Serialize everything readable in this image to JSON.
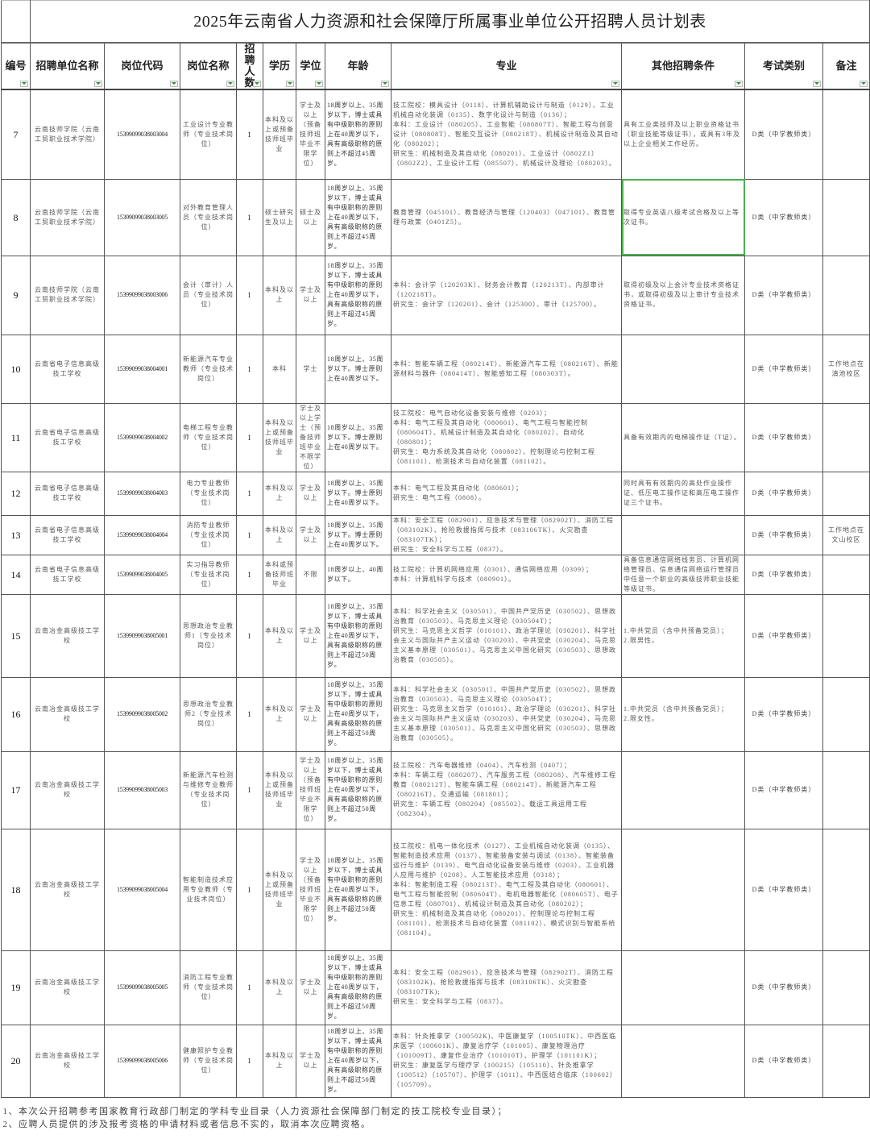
{
  "title": "2025年云南省人力资源和社会保障厅所属事业单位公开招聘人员计划表",
  "headers": [
    "编号",
    "招聘单位名称",
    "岗位代码",
    "岗位名称",
    "招聘人数",
    "学历",
    "学位",
    "年龄",
    "专业",
    "其他招聘条件",
    "考试类别",
    "备注"
  ],
  "rows": [
    {
      "no": "7",
      "unit": "云南技师学院（云南工贸职业技术学院）",
      "code": "15399099038003004",
      "post": "工业设计专业教师（专业技术岗位）",
      "count": "1",
      "edu": "本科及以上或预备技师班毕业",
      "degree": "学士及以上（预备技师班毕业不限学位）",
      "age": "18周岁以上、35周岁以下，博士或具有中级职称的原则上在40周岁以下，具有高级职称的原则上不超过45周岁。",
      "major": "技工院校：模具设计（0118）、计算机辅助设计与制造（0129）、工业机械自动化装调（0135）、数字化设计与制造（0136）；\n本科：工业设计（080205）、工业智能（080807T）、智能工程与创意设计（080808T）、智能交互设计（080218T）、机械设计制造及其自动化（080202）；\n研究生：机械制造及其自动化（080201）、工业设计（0802Z1）（0802Z2）、工业设计工程（085507）、机械设计及理论（080203）。",
      "other": "具有工业类技师及以上职业资格证书（职业技能等级证书），或具有3年及以上企业相关工作经历。",
      "exam": "D类（中学教师类）",
      "note": ""
    },
    {
      "no": "8",
      "unit": "云南技师学院（云南工贸职业技术学院）",
      "code": "15399099038003005",
      "post": "对外教育管理人员（专业技术岗位）",
      "count": "1",
      "edu": "硕士研究生及以上",
      "degree": "硕士及以上",
      "age": "18周岁以上、35周岁以下，博士或具有中级职称的原则上在40周岁以下，具有高级职称的原则上不超过45周岁。",
      "major": "教育管理（045101）、教育经济与管理（120403）（047101）、教育管理与政策（0401Z5）。",
      "other": "取得专业英语八级考试合格及以上等次证书。",
      "exam": "D类（中学教师类）",
      "note": ""
    },
    {
      "no": "9",
      "unit": "云南技师学院（云南工贸职业技术学院）",
      "code": "15399099038003006",
      "post": "会计（审计）人员（专业技术岗位）",
      "count": "1",
      "edu": "本科及以上",
      "degree": "学士及以上",
      "age": "18周岁以上、35周岁以下，博士或具有中级职称的原则上在40周岁以下，具有高级职称的原则上不超过45周岁。",
      "major": "本科：会计学（120203K）、财务会计教育（120213T）、内部审计（120218T）。\n研究生：会计学（120201）、会计（125300）、审计（125700）。",
      "other": "取得初级及以上会计专业技术资格证书，或取得初级及以上审计专业技术资格证书。",
      "exam": "D类（中学教师类）",
      "note": ""
    },
    {
      "no": "10",
      "unit": "云南省电子信息高级技工学校",
      "code": "15399099038004001",
      "post": "新能源汽车专业教师（专业技术岗位）",
      "count": "1",
      "edu": "本科",
      "degree": "学士",
      "age": "18周岁以上、35周岁以下。博士原则上在40周岁以下。",
      "major": "本科：智能车辆工程（080214T）、新能源汽车工程（080216T）、新能源材料与器件（080414T）、智能感知工程（080303T）。",
      "other": "",
      "exam": "D类（中学教师类）",
      "note": "工作地点在滇池校区"
    },
    {
      "no": "11",
      "unit": "云南省电子信息高级技工学校",
      "code": "15399099038004002",
      "post": "电梯工程专业教师（专业技术岗位）",
      "count": "1",
      "edu": "本科及以上或预备技师班毕业",
      "degree": "学士及以上学士（预备技师班毕业不限学位）",
      "age": "18周岁以上、35周岁以下。博士原则上在40周岁以下。",
      "major": "技工院校：电气自动化设备安装与维修（0203）；\n本科：电气工程及其自动化（080601）、电气工程与智能控制（080604T）、机械设计制造及其自动化（080202）、自动化（080801）；\n研究生：电力系统及其自动化（080802）、控制理论与控制工程（081101）、检测技术与自动化装置（081102）。",
      "other": "具备有效期内的电梯操作证（T证）。",
      "exam": "D类（中学教师类）",
      "note": ""
    },
    {
      "no": "12",
      "unit": "云南省电子信息高级技工学校",
      "code": "15399099038004003",
      "post": "电力专业教师（专业技术岗位）",
      "count": "1",
      "edu": "本科及以上",
      "degree": "学士及以上",
      "age": "18周岁以上、35周岁以下。博士原则上在40周岁以下。",
      "major": "本科：电气工程及其自动化（080601）；\n研究生：电气工程（0808）。",
      "other": "同时具有有效期内的高处作业操作证、低压电工操作证和高压电工操作证三个证书。",
      "exam": "D类（中学教师类）",
      "note": ""
    },
    {
      "no": "13",
      "unit": "云南省电子信息高级技工学校",
      "code": "15399099038004004",
      "post": "消防专业教师（专业技术岗位）",
      "count": "1",
      "edu": "本科及以上",
      "degree": "学士及以上",
      "age": "18周岁以上、35周岁以下。博士原则上在40周岁以下。",
      "major": "本科：安全工程（082901）、应急技术与管理（082902T）、消防工程（083102K）、抢险救援指挥与技术（083106TK）、火灾勘查（083107TK）；\n研究生：安全科学与工程（0837）。",
      "other": "",
      "exam": "D类（中学教师类）",
      "note": "工作地点在文山校区"
    },
    {
      "no": "14",
      "unit": "云南省电子信息高级技工学校",
      "code": "15399099038004005",
      "post": "实习指导教师（专业技术岗位）",
      "count": "1",
      "edu": "本科或预备技师班毕业",
      "degree": "不限",
      "age": "18周岁以上、40周岁以下。",
      "major": "技工院校：计算机网络应用（0301）、通信网络应用（0309）；\n本科：计算机科学与技术（080901）。",
      "other": "具备信息通信网络线务员、计算机网络管理员、信息通信网络运行管理员中任意一个职业的高级技师职业技能等级证书。",
      "exam": "D类（中学教师类）",
      "note": ""
    },
    {
      "no": "15",
      "unit": "云南冶金高级技工学校",
      "code": "15399099038005001",
      "post": "思想政治专业教师1（专业技术岗位）",
      "count": "1",
      "edu": "本科及以上",
      "degree": "学士及以上",
      "age": "18周岁以上、35周岁以下，博士或具有中级职称的原则上在40周岁以下，具有高级职称的原则上不超过50周岁。",
      "major": "本科：科学社会主义（030501）、中国共产党历史（030502）、思想政治教育（030503）、马克思主义理论（030504T）；\n研究生：马克思主义哲学（010101）、政治学理论（030201）、科学社会主义与国际共产主义运动（030203）、中共党史（030204）、马克思主义基本原理（030501）、马克思主义中国化研究（030503）、思想政治教育（030505）。",
      "other": "1.中共党员（含中共预备党员）；\n2.限男性。",
      "exam": "D类（中学教师类）",
      "note": ""
    },
    {
      "no": "16",
      "unit": "云南冶金高级技工学校",
      "code": "15399099038005002",
      "post": "思想政治专业教师2（专业技术岗位）",
      "count": "1",
      "edu": "本科及以上",
      "degree": "学士及以上",
      "age": "18周岁以上、35周岁以下，博士或具有中级职称的原则上在40周岁以下，具有高级职称的原则上不超过50周岁。",
      "major": "本科：科学社会主义（030501）、中国共产党历史（030502）、思想政治教育（030503）、马克思主义理论（030504T）；\n研究生：马克思主义哲学（010101）、政治学理论（030201）、科学社会主义与国际共产主义运动（030203）、中共党史（030204）、马克思主义基本原理（030501）、马克思主义中国化研究（030503）、思想政治教育（030505）。",
      "other": "1.中共党员（含中共预备党员）；\n2.限女性。",
      "exam": "D类（中学教师类）",
      "note": ""
    },
    {
      "no": "17",
      "unit": "云南冶金高级技工学校",
      "code": "15399099038005003",
      "post": "新能源汽车检测与维修专业教师（专业技术岗位）",
      "count": "1",
      "edu": "本科及以上或预备技师班毕业",
      "degree": "学士及以上（预备技师班毕业不限学位）",
      "age": "18周岁以上、35周岁以下，博士或具有中级职称的原则上在40周岁以下，具有高级职称的原则上不超过50周岁。",
      "major": "技工院校：汽车电器维修（0404）、汽车检测（0407）；\n本科：车辆工程（080207）、汽车服务工程（080208）、汽车维修工程教育（080212T）、智能车辆工程（080214T）、新能源汽车工程（080216T）、交通运输（081801）；\n研究生：车辆工程（080204）（085502）、载运工具运用工程（082304）。",
      "other": "",
      "exam": "D类（中学教师类）",
      "note": ""
    },
    {
      "no": "18",
      "unit": "云南冶金高级技工学校",
      "code": "15399099038005004",
      "post": "智能制造技术应用专业教师（专业技术岗位）",
      "count": "1",
      "edu": "本科及以上或预备技师班毕业",
      "degree": "学士及以上（预备技师班毕业不限学位）",
      "age": "18周岁以上、35周岁以下，博士或具有中级职称的原则上在40周岁以下，具有高级职称的原则上不超过50周岁。",
      "major": "技工院校：机电一体化技术（0127）、工业机械自动化装调（0135）、智能制造技术应用（0137）、智能装备安装与调试（0138）、智能装备运行与维护（0139）、电气自动化设备安装与维修（0203）、工业机器人应用与维护（0208）、人工智能技术应用（0318）；\n本科：智能制造工程（080213T）、电气工程及其自动化（080601）、电气工程与智能控制（080604T）、电机电器智能化（080605T）、电子信息工程（080701）、机械设计制造及其自动化（080202）；\n研究生：机械制造及其自动化（080201）、控制理论与控制工程（081101）、检测技术与自动化装置（081102）、模式识别与智能系统（081104）。",
      "other": "",
      "exam": "D类（中学教师类）",
      "note": ""
    },
    {
      "no": "19",
      "unit": "云南冶金高级技工学校",
      "code": "15399099038005005",
      "post": "消防工程专业教师（专业技术岗位）",
      "count": "1",
      "edu": "本科及以上",
      "degree": "学士及以上",
      "age": "18周岁以上、35周岁以下，博士或具有中级职称的原则上在40周岁以下，具有高级职称的原则上不超过50周岁。",
      "major": "本科：安全工程（082901）、应急技术与管理（082902T）、消防工程（083102K)、抢险救援指挥与技术（083106TK）、火灾勘查（083107TK);\n研究生：安全科学与工程（0837）。",
      "other": "",
      "exam": "D类（中学教师类）",
      "note": ""
    },
    {
      "no": "20",
      "unit": "云南冶金高级技工学校",
      "code": "15399099038005006",
      "post": "健康照护专业教师（专业技术岗位）",
      "count": "1",
      "edu": "本科及以上",
      "degree": "学士及以上",
      "age": "18周岁以上、35周岁以下，博士或具有中级职称的原则上在40周岁以下，具有高级职称的原则上不超过50周岁。",
      "major": "本科：针灸推拿学（100502K)、中医康复学（100510TK）、中西医临床医学（100601K）、康复治疗学（101005）、康复物理治疗（101009T）、康复作业治疗（101010T）、护理学（101101K）；\n研究生：康复医学与理疗学（100215）（105110）、针灸推拿学（100512）（105707）、护理学（1011）、中西医结合临床（100602）（105709）。",
      "other": "",
      "exam": "D类（中学教师类）",
      "note": ""
    }
  ],
  "footnotes": [
    "1、本次公开招聘参考国家教育行政部门制定的学科专业目录（人力资源社会保障部门制定的技工院校专业目录）；",
    "2、应聘人员提供的涉及报考资格的申请材料或者信息不实的，取消本次应聘资格。"
  ],
  "colors": {
    "grid": "#555555",
    "selection": "#4caf50",
    "filter_arrow": "#2e8b3e"
  }
}
